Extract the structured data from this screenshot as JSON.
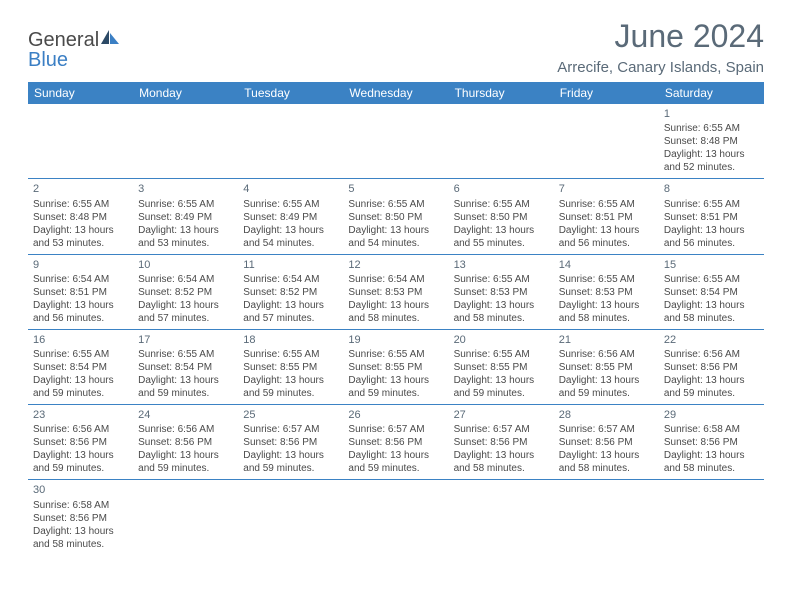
{
  "brand": {
    "name_part1": "General",
    "name_part2": "Blue"
  },
  "title": "June 2024",
  "location": "Arrecife, Canary Islands, Spain",
  "colors": {
    "header_bg": "#3b82c4",
    "header_text": "#ffffff",
    "text": "#4a4a4a",
    "title_text": "#5a6a78",
    "rule": "#3b82c4",
    "page_bg": "#ffffff",
    "logo_dark": "#2c4a66",
    "logo_blue": "#3b7fc4"
  },
  "typography": {
    "title_fontsize": 32,
    "location_fontsize": 15,
    "weekday_fontsize": 12,
    "daynum_fontsize": 11,
    "body_fontsize": 10,
    "font_family": "Arial"
  },
  "layout": {
    "columns": 7,
    "cell_min_height": 72
  },
  "weekdays": [
    "Sunday",
    "Monday",
    "Tuesday",
    "Wednesday",
    "Thursday",
    "Friday",
    "Saturday"
  ],
  "weeks": [
    [
      null,
      null,
      null,
      null,
      null,
      null,
      {
        "n": "1",
        "sunrise": "Sunrise: 6:55 AM",
        "sunset": "Sunset: 8:48 PM",
        "d1": "Daylight: 13 hours",
        "d2": "and 52 minutes."
      }
    ],
    [
      {
        "n": "2",
        "sunrise": "Sunrise: 6:55 AM",
        "sunset": "Sunset: 8:48 PM",
        "d1": "Daylight: 13 hours",
        "d2": "and 53 minutes."
      },
      {
        "n": "3",
        "sunrise": "Sunrise: 6:55 AM",
        "sunset": "Sunset: 8:49 PM",
        "d1": "Daylight: 13 hours",
        "d2": "and 53 minutes."
      },
      {
        "n": "4",
        "sunrise": "Sunrise: 6:55 AM",
        "sunset": "Sunset: 8:49 PM",
        "d1": "Daylight: 13 hours",
        "d2": "and 54 minutes."
      },
      {
        "n": "5",
        "sunrise": "Sunrise: 6:55 AM",
        "sunset": "Sunset: 8:50 PM",
        "d1": "Daylight: 13 hours",
        "d2": "and 54 minutes."
      },
      {
        "n": "6",
        "sunrise": "Sunrise: 6:55 AM",
        "sunset": "Sunset: 8:50 PM",
        "d1": "Daylight: 13 hours",
        "d2": "and 55 minutes."
      },
      {
        "n": "7",
        "sunrise": "Sunrise: 6:55 AM",
        "sunset": "Sunset: 8:51 PM",
        "d1": "Daylight: 13 hours",
        "d2": "and 56 minutes."
      },
      {
        "n": "8",
        "sunrise": "Sunrise: 6:55 AM",
        "sunset": "Sunset: 8:51 PM",
        "d1": "Daylight: 13 hours",
        "d2": "and 56 minutes."
      }
    ],
    [
      {
        "n": "9",
        "sunrise": "Sunrise: 6:54 AM",
        "sunset": "Sunset: 8:51 PM",
        "d1": "Daylight: 13 hours",
        "d2": "and 56 minutes."
      },
      {
        "n": "10",
        "sunrise": "Sunrise: 6:54 AM",
        "sunset": "Sunset: 8:52 PM",
        "d1": "Daylight: 13 hours",
        "d2": "and 57 minutes."
      },
      {
        "n": "11",
        "sunrise": "Sunrise: 6:54 AM",
        "sunset": "Sunset: 8:52 PM",
        "d1": "Daylight: 13 hours",
        "d2": "and 57 minutes."
      },
      {
        "n": "12",
        "sunrise": "Sunrise: 6:54 AM",
        "sunset": "Sunset: 8:53 PM",
        "d1": "Daylight: 13 hours",
        "d2": "and 58 minutes."
      },
      {
        "n": "13",
        "sunrise": "Sunrise: 6:55 AM",
        "sunset": "Sunset: 8:53 PM",
        "d1": "Daylight: 13 hours",
        "d2": "and 58 minutes."
      },
      {
        "n": "14",
        "sunrise": "Sunrise: 6:55 AM",
        "sunset": "Sunset: 8:53 PM",
        "d1": "Daylight: 13 hours",
        "d2": "and 58 minutes."
      },
      {
        "n": "15",
        "sunrise": "Sunrise: 6:55 AM",
        "sunset": "Sunset: 8:54 PM",
        "d1": "Daylight: 13 hours",
        "d2": "and 58 minutes."
      }
    ],
    [
      {
        "n": "16",
        "sunrise": "Sunrise: 6:55 AM",
        "sunset": "Sunset: 8:54 PM",
        "d1": "Daylight: 13 hours",
        "d2": "and 59 minutes."
      },
      {
        "n": "17",
        "sunrise": "Sunrise: 6:55 AM",
        "sunset": "Sunset: 8:54 PM",
        "d1": "Daylight: 13 hours",
        "d2": "and 59 minutes."
      },
      {
        "n": "18",
        "sunrise": "Sunrise: 6:55 AM",
        "sunset": "Sunset: 8:55 PM",
        "d1": "Daylight: 13 hours",
        "d2": "and 59 minutes."
      },
      {
        "n": "19",
        "sunrise": "Sunrise: 6:55 AM",
        "sunset": "Sunset: 8:55 PM",
        "d1": "Daylight: 13 hours",
        "d2": "and 59 minutes."
      },
      {
        "n": "20",
        "sunrise": "Sunrise: 6:55 AM",
        "sunset": "Sunset: 8:55 PM",
        "d1": "Daylight: 13 hours",
        "d2": "and 59 minutes."
      },
      {
        "n": "21",
        "sunrise": "Sunrise: 6:56 AM",
        "sunset": "Sunset: 8:55 PM",
        "d1": "Daylight: 13 hours",
        "d2": "and 59 minutes."
      },
      {
        "n": "22",
        "sunrise": "Sunrise: 6:56 AM",
        "sunset": "Sunset: 8:56 PM",
        "d1": "Daylight: 13 hours",
        "d2": "and 59 minutes."
      }
    ],
    [
      {
        "n": "23",
        "sunrise": "Sunrise: 6:56 AM",
        "sunset": "Sunset: 8:56 PM",
        "d1": "Daylight: 13 hours",
        "d2": "and 59 minutes."
      },
      {
        "n": "24",
        "sunrise": "Sunrise: 6:56 AM",
        "sunset": "Sunset: 8:56 PM",
        "d1": "Daylight: 13 hours",
        "d2": "and 59 minutes."
      },
      {
        "n": "25",
        "sunrise": "Sunrise: 6:57 AM",
        "sunset": "Sunset: 8:56 PM",
        "d1": "Daylight: 13 hours",
        "d2": "and 59 minutes."
      },
      {
        "n": "26",
        "sunrise": "Sunrise: 6:57 AM",
        "sunset": "Sunset: 8:56 PM",
        "d1": "Daylight: 13 hours",
        "d2": "and 59 minutes."
      },
      {
        "n": "27",
        "sunrise": "Sunrise: 6:57 AM",
        "sunset": "Sunset: 8:56 PM",
        "d1": "Daylight: 13 hours",
        "d2": "and 58 minutes."
      },
      {
        "n": "28",
        "sunrise": "Sunrise: 6:57 AM",
        "sunset": "Sunset: 8:56 PM",
        "d1": "Daylight: 13 hours",
        "d2": "and 58 minutes."
      },
      {
        "n": "29",
        "sunrise": "Sunrise: 6:58 AM",
        "sunset": "Sunset: 8:56 PM",
        "d1": "Daylight: 13 hours",
        "d2": "and 58 minutes."
      }
    ],
    [
      {
        "n": "30",
        "sunrise": "Sunrise: 6:58 AM",
        "sunset": "Sunset: 8:56 PM",
        "d1": "Daylight: 13 hours",
        "d2": "and 58 minutes."
      },
      null,
      null,
      null,
      null,
      null,
      null
    ]
  ]
}
